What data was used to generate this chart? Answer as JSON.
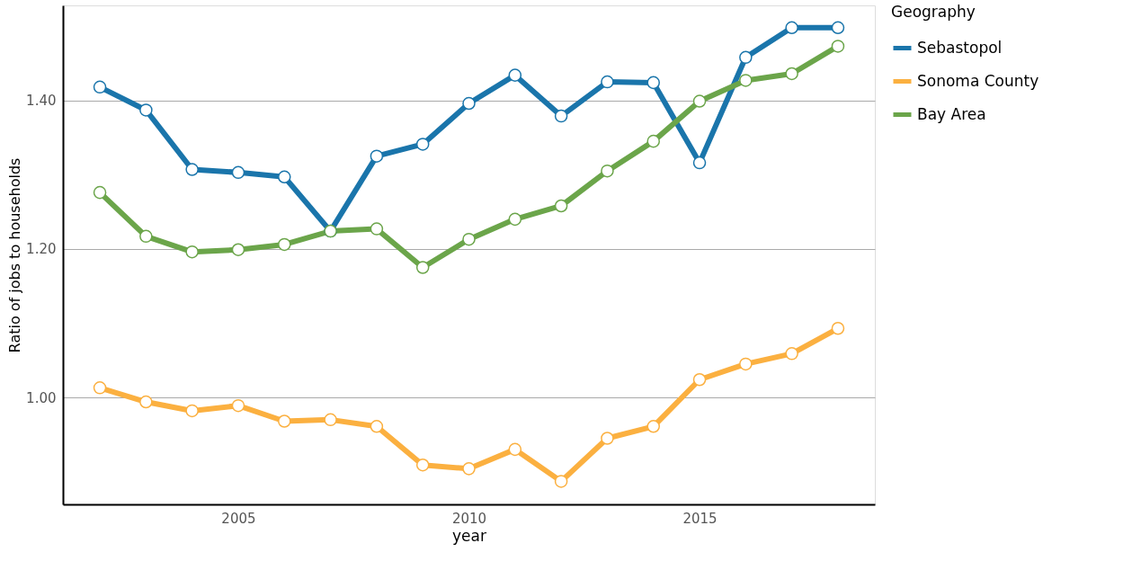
{
  "chart_data": {
    "type": "line",
    "xlabel": "year",
    "ylabel": "Ratio of jobs to households",
    "legend_title": "Geography",
    "x": [
      2002,
      2003,
      2004,
      2005,
      2006,
      2007,
      2008,
      2009,
      2010,
      2011,
      2012,
      2013,
      2014,
      2015,
      2016,
      2017,
      2018
    ],
    "series": [
      {
        "name": "Sebastopol",
        "color": "#1a75ab",
        "values": [
          1.418,
          1.387,
          1.307,
          1.303,
          1.297,
          1.224,
          1.325,
          1.341,
          1.396,
          1.434,
          1.379,
          1.425,
          1.424,
          1.316,
          1.458,
          1.498,
          1.498
        ]
      },
      {
        "name": "Sonoma County",
        "color": "#fbb040",
        "values": [
          1.013,
          0.994,
          0.982,
          0.989,
          0.968,
          0.97,
          0.961,
          0.909,
          0.904,
          0.93,
          0.887,
          0.945,
          0.961,
          1.024,
          1.045,
          1.059,
          1.093
        ]
      },
      {
        "name": "Bay Area",
        "color": "#6ba54a",
        "values": [
          1.276,
          1.217,
          1.196,
          1.199,
          1.206,
          1.224,
          1.227,
          1.175,
          1.213,
          1.24,
          1.258,
          1.305,
          1.345,
          1.399,
          1.427,
          1.436,
          1.473
        ]
      }
    ],
    "xlim": [
      2001.2,
      2018.8
    ],
    "xticks": [
      2005,
      2010,
      2015
    ],
    "ylim": [
      0.856,
      1.528
    ],
    "yticks": [
      {
        "value": 1.0,
        "label": "1.00"
      },
      {
        "value": 1.2,
        "label": "1.20"
      },
      {
        "value": 1.4,
        "label": "1.40"
      }
    ],
    "grid": "y",
    "legend": "right",
    "marker": "circle",
    "line_style": "solid"
  }
}
